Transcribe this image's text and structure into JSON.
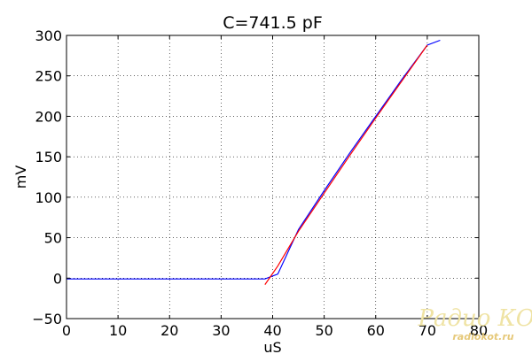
{
  "chart_data": {
    "type": "line",
    "title": "C=741.5 pF",
    "xlabel": "uS",
    "ylabel": "mV",
    "xlim": [
      0,
      80
    ],
    "ylim": [
      -50,
      300
    ],
    "x_ticks": [
      0,
      10,
      20,
      30,
      40,
      50,
      60,
      70,
      80
    ],
    "y_ticks": [
      -50,
      0,
      50,
      100,
      150,
      200,
      250,
      300
    ],
    "x_tick_labels": [
      "0",
      "10",
      "20",
      "30",
      "40",
      "50",
      "60",
      "70",
      "80"
    ],
    "y_tick_labels": [
      "−50",
      "0",
      "50",
      "100",
      "150",
      "200",
      "250",
      "300"
    ],
    "grid": true,
    "series": [
      {
        "color": "#0000ff",
        "x": [
          0,
          10,
          20,
          30,
          38.5,
          41,
          45,
          50,
          55,
          60,
          65,
          70,
          72.5
        ],
        "y": [
          -1,
          -1,
          -1,
          -1,
          -1,
          5,
          60,
          108,
          155,
          200,
          245,
          288,
          294
        ]
      },
      {
        "color": "#ff0000",
        "x": [
          38.5,
          41,
          45,
          50,
          55,
          60,
          65,
          70
        ],
        "y": [
          -8,
          15,
          58,
          105,
          152,
          198,
          243,
          288
        ]
      }
    ]
  },
  "watermark": {
    "main": "Радио КОТ",
    "sub": "radiokot.ru"
  }
}
